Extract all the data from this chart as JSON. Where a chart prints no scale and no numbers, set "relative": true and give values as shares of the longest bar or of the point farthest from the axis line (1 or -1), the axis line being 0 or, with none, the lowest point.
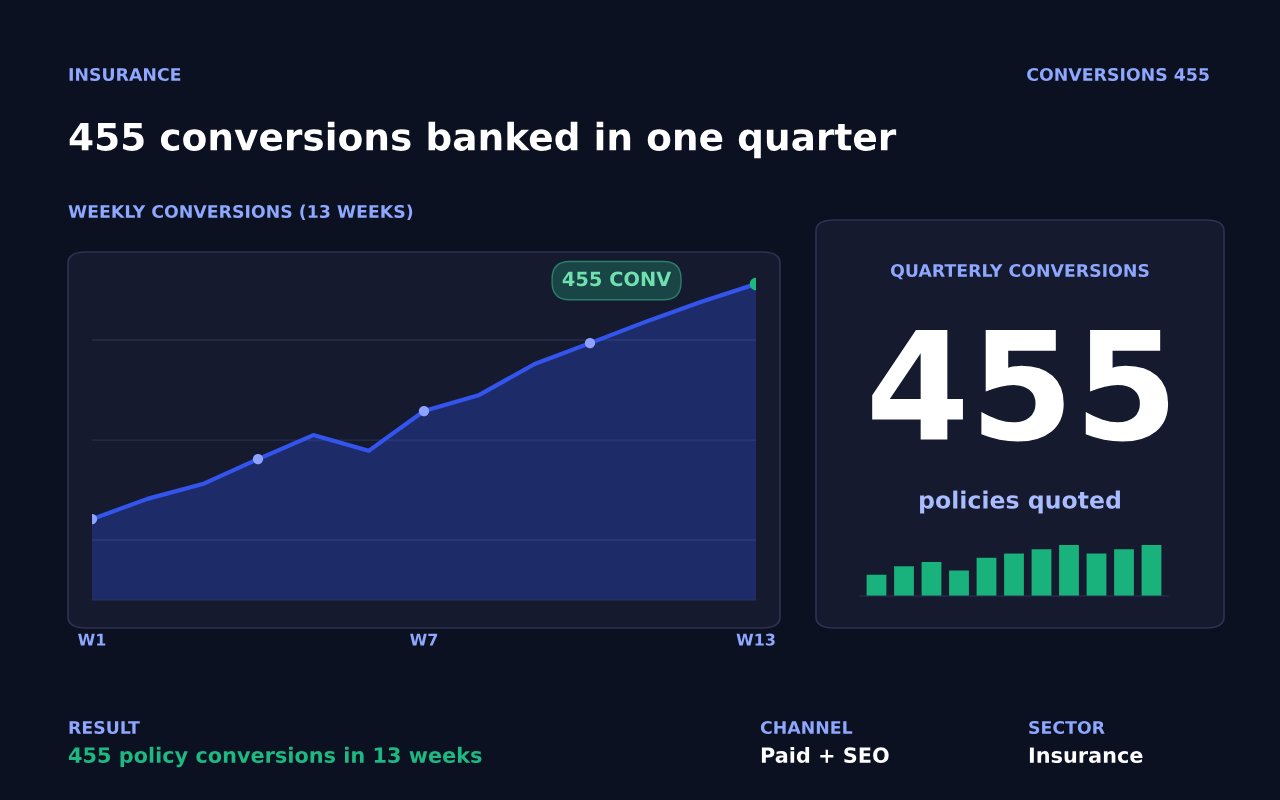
{
  "chart_data": [
    {
      "type": "other",
      "title": "455 conversions banked in one quarter",
      "annotations": [
        "INSURANCE",
        "CONVERSIONS 455",
        "RESULT",
        "455 policy conversions in 13 weeks",
        "CHANNEL",
        "Paid + SEO",
        "SECTOR",
        "Insurance"
      ]
    },
    {
      "type": "area",
      "title": "WEEKLY CONVERSIONS (13 WEEKS)",
      "relative": true,
      "grid": "y",
      "categories": [
        "W1",
        null,
        null,
        null,
        null,
        null,
        "W7",
        null,
        null,
        null,
        null,
        null,
        "W13"
      ],
      "series": [
        {
          "type": "area",
          "color": "#3355ee",
          "values": [
            0.256,
            0.32,
            0.367,
            0.446,
            0.522,
            0.472,
            0.598,
            0.649,
            0.747,
            0.813,
            0.88,
            0.943,
            1
          ]
        },
        {
          "type": "scatter",
          "color": "#8ea2ff",
          "values": [
            0.256,
            null,
            null,
            0.446,
            null,
            null,
            0.598,
            null,
            null,
            0.813,
            null,
            null,
            null
          ]
        },
        {
          "type": "scatter",
          "color": "#1db980",
          "values": [
            null,
            null,
            null,
            null,
            null,
            null,
            null,
            null,
            null,
            null,
            null,
            null,
            1
          ]
        }
      ],
      "annotations": [
        "455 CONV"
      ]
    },
    {
      "type": "bar",
      "title": "QUARTERLY CONVERSIONS",
      "relative": true,
      "color": "#19b17c",
      "categories": [
        null,
        null,
        null,
        null,
        null,
        null,
        null,
        null,
        null,
        null,
        null
      ],
      "values": [
        0.417,
        0.583,
        0.667,
        0.5,
        0.75,
        0.833,
        0.917,
        1,
        0.833,
        0.917,
        1
      ],
      "annotations": [
        "455",
        "policies quoted"
      ]
    }
  ]
}
